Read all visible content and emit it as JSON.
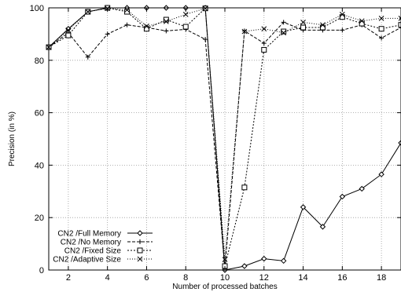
{
  "chart_data": {
    "type": "line",
    "title": "",
    "xlabel": "Number of processed batches",
    "ylabel": "Precision (in %)",
    "xlim": [
      1,
      19
    ],
    "ylim": [
      0,
      100
    ],
    "xticks": [
      2,
      4,
      6,
      8,
      10,
      12,
      14,
      16,
      18
    ],
    "yticks": [
      0,
      20,
      40,
      60,
      80,
      100
    ],
    "grid": true,
    "legend_position": "bottom-left",
    "x": [
      1,
      2,
      3,
      4,
      5,
      6,
      7,
      8,
      9,
      10,
      11,
      12,
      13,
      14,
      15,
      16,
      17,
      18,
      19
    ],
    "series": [
      {
        "name": "CN2 /Full Memory",
        "line": "solid",
        "marker": "diamond",
        "values": [
          85,
          92,
          98.5,
          100,
          100,
          100,
          100,
          100,
          100,
          0,
          1.5,
          4.3,
          3.5,
          24,
          16.5,
          28,
          31,
          36.5,
          48.5
        ]
      },
      {
        "name": "CN2 /No Memory",
        "line": "dashed",
        "marker": "plus",
        "values": [
          85,
          90.5,
          81.2,
          90,
          93.5,
          92.5,
          91.2,
          91.8,
          88,
          0.5,
          91.2,
          86.5,
          94.5,
          91.5,
          91.5,
          91.5,
          93.5,
          88.5,
          92.5
        ]
      },
      {
        "name": "CN2 /Fixed Size",
        "line": "dotted",
        "marker": "square",
        "values": [
          85,
          89.5,
          98.5,
          100,
          98.5,
          92,
          95.5,
          92.8,
          99.8,
          1.5,
          31.5,
          84,
          91,
          92.5,
          92.5,
          96.5,
          94,
          92,
          93.5
        ]
      },
      {
        "name": "CN2 /Adaptive Size",
        "line": "fine-dotted",
        "marker": "cross",
        "values": [
          85,
          91.5,
          98.5,
          99.8,
          99.2,
          93,
          94.8,
          97.5,
          99.8,
          4,
          91,
          92,
          90.5,
          94.5,
          93.5,
          97.5,
          95,
          96,
          96
        ]
      }
    ]
  }
}
